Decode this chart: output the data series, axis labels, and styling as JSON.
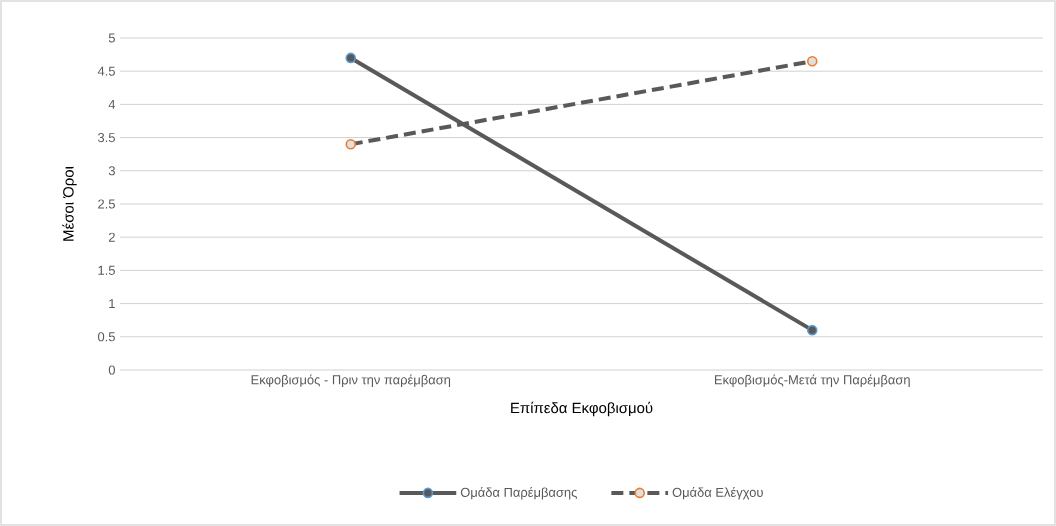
{
  "chart_data": {
    "type": "line",
    "categories": [
      "Εκφοβισμός - Πριν την παρέμβαση",
      "Εκφοβισμός-Μετά την Παρέμβαση"
    ],
    "xlabel": "Επίπεδα Εκφοβισμού",
    "ylabel": "Μέσοι Όροι",
    "series": [
      {
        "name": "Ομάδα Παρέμβασης",
        "color": "#595959",
        "colors": [
          "#5b9bd5",
          "#5b9bd5"
        ],
        "line_style": "solid",
        "values": [
          4.7,
          0.6
        ]
      },
      {
        "name": "Ομάδα Ελέγχου",
        "color": "#595959",
        "colors": [
          "#ed7d31",
          "#ed7d31"
        ],
        "line_style": "dashed",
        "values": [
          3.4,
          4.65
        ]
      }
    ],
    "ylim": [
      0,
      5
    ],
    "yticks": [
      0,
      0.5,
      1,
      1.5,
      2,
      2.5,
      3,
      3.5,
      4,
      4.5,
      5
    ],
    "grid": "y",
    "legend": "bottom",
    "marker": "circle"
  }
}
